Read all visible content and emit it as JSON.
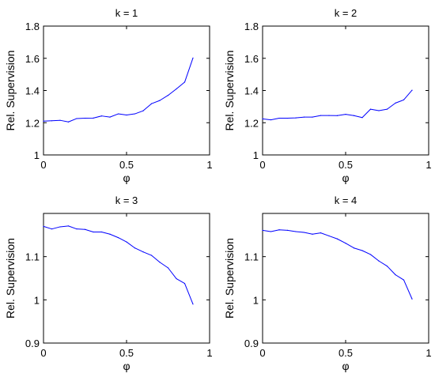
{
  "chart_data": [
    {
      "type": "line",
      "title": "k = 1",
      "xlabel": "φ",
      "ylabel": "Rel. Supervision",
      "xlim": [
        0,
        1
      ],
      "ylim": [
        1,
        1.8
      ],
      "xticks": [
        "0",
        "0.5",
        "1"
      ],
      "yticks": [
        "1",
        "1.2",
        "1.4",
        "1.6",
        "1.8"
      ],
      "color": "#0000ff",
      "x": [
        0,
        0.05,
        0.1,
        0.15,
        0.2,
        0.25,
        0.3,
        0.35,
        0.4,
        0.45,
        0.5,
        0.55,
        0.6,
        0.65,
        0.7,
        0.75,
        0.8,
        0.85,
        0.9
      ],
      "y": [
        1.21,
        1.212,
        1.215,
        1.205,
        1.226,
        1.228,
        1.229,
        1.242,
        1.235,
        1.255,
        1.248,
        1.255,
        1.274,
        1.318,
        1.338,
        1.37,
        1.41,
        1.452,
        1.602
      ]
    },
    {
      "type": "line",
      "title": "k = 2",
      "xlabel": "φ",
      "ylabel": "Rel. Supervision",
      "xlim": [
        0,
        1
      ],
      "ylim": [
        1,
        1.8
      ],
      "xticks": [
        "0",
        "0.5",
        "1"
      ],
      "yticks": [
        "1",
        "1.2",
        "1.4",
        "1.6",
        "1.8"
      ],
      "color": "#0000ff",
      "x": [
        0,
        0.05,
        0.1,
        0.15,
        0.2,
        0.25,
        0.3,
        0.35,
        0.4,
        0.45,
        0.5,
        0.55,
        0.6,
        0.65,
        0.7,
        0.75,
        0.8,
        0.85,
        0.9
      ],
      "y": [
        1.224,
        1.218,
        1.228,
        1.228,
        1.23,
        1.235,
        1.235,
        1.245,
        1.245,
        1.244,
        1.252,
        1.244,
        1.232,
        1.284,
        1.275,
        1.284,
        1.322,
        1.342,
        1.402
      ]
    },
    {
      "type": "line",
      "title": "k = 3",
      "xlabel": "φ",
      "ylabel": "Rel. Supervision",
      "xlim": [
        0,
        1
      ],
      "ylim": [
        0.9,
        1.2
      ],
      "xticks": [
        "0",
        "0.5",
        "1"
      ],
      "yticks": [
        "0.9",
        "1",
        "1.1"
      ],
      "color": "#0000ff",
      "x": [
        0,
        0.05,
        0.1,
        0.15,
        0.2,
        0.25,
        0.3,
        0.35,
        0.4,
        0.45,
        0.5,
        0.55,
        0.6,
        0.65,
        0.7,
        0.75,
        0.8,
        0.85,
        0.9
      ],
      "y": [
        1.17,
        1.164,
        1.169,
        1.171,
        1.164,
        1.163,
        1.157,
        1.157,
        1.152,
        1.144,
        1.134,
        1.12,
        1.111,
        1.103,
        1.087,
        1.074,
        1.049,
        1.038,
        0.99
      ]
    },
    {
      "type": "line",
      "title": "k = 4",
      "xlabel": "φ",
      "ylabel": "Rel. Supervision",
      "xlim": [
        0,
        1
      ],
      "ylim": [
        0.9,
        1.2
      ],
      "xticks": [
        "0",
        "0.5",
        "1"
      ],
      "yticks": [
        "0.9",
        "1",
        "1.1"
      ],
      "color": "#0000ff",
      "x": [
        0,
        0.05,
        0.1,
        0.15,
        0.2,
        0.25,
        0.3,
        0.35,
        0.4,
        0.45,
        0.5,
        0.55,
        0.6,
        0.65,
        0.7,
        0.75,
        0.8,
        0.85,
        0.9
      ],
      "y": [
        1.161,
        1.158,
        1.162,
        1.161,
        1.158,
        1.156,
        1.152,
        1.155,
        1.148,
        1.141,
        1.131,
        1.12,
        1.114,
        1.105,
        1.09,
        1.078,
        1.058,
        1.046,
        1.002
      ]
    }
  ]
}
